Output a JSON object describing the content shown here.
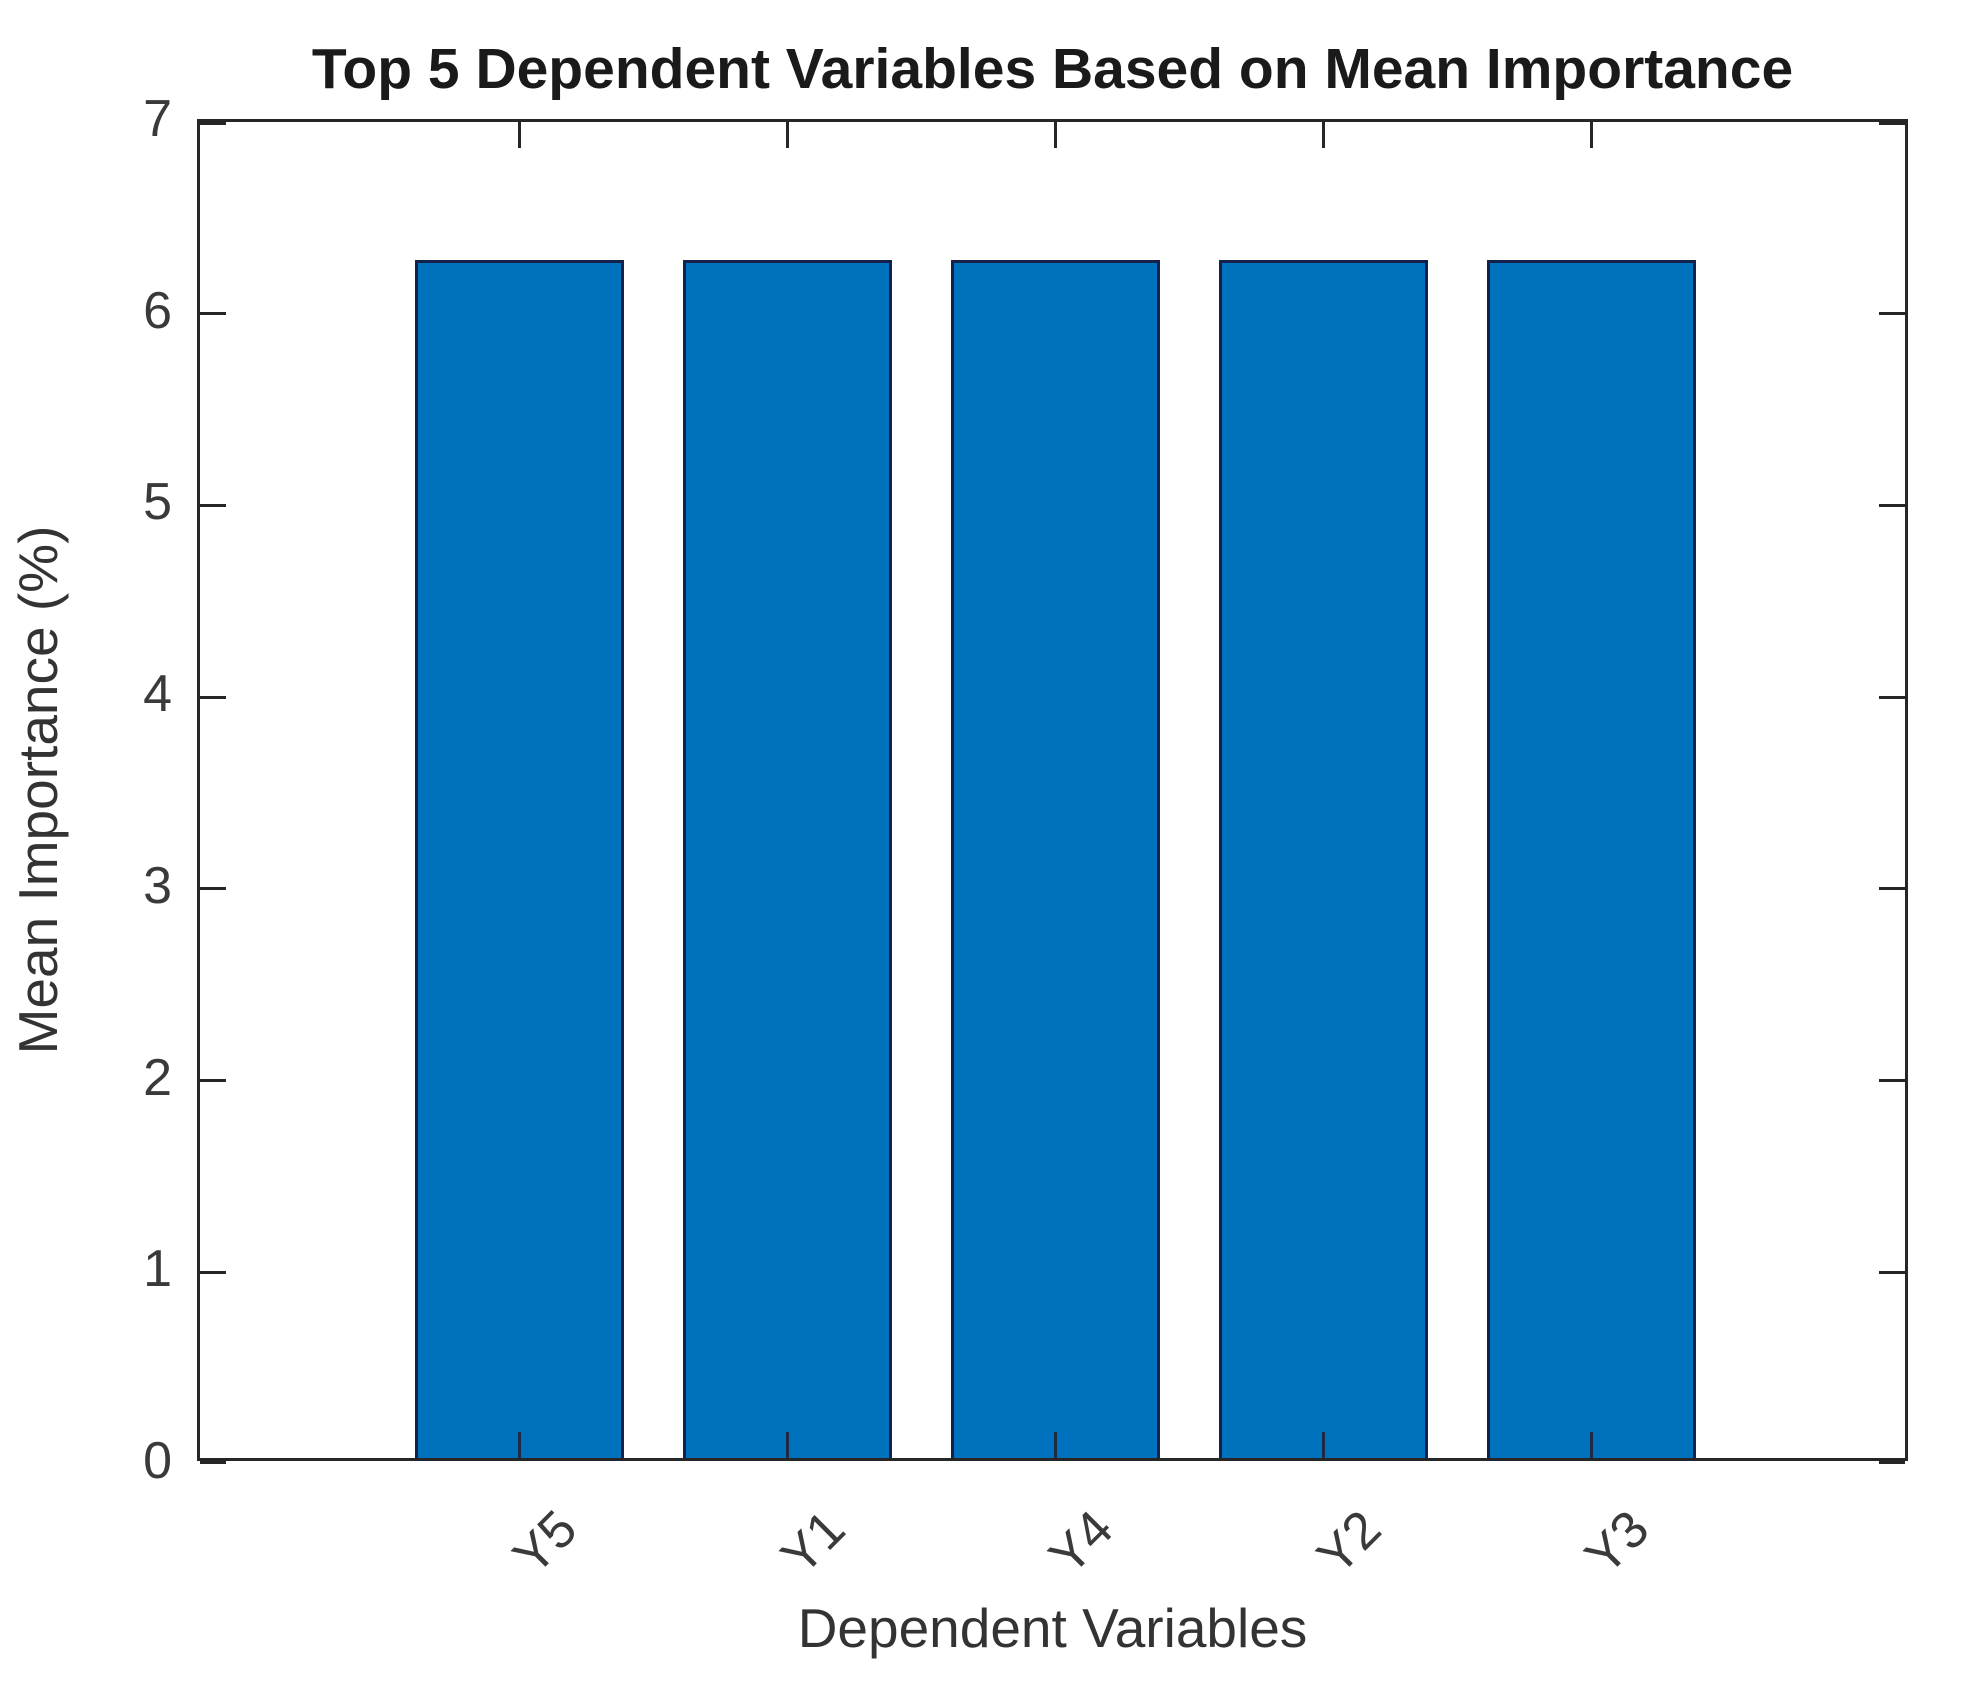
{
  "chart_data": {
    "type": "bar",
    "title": "Top 5 Dependent Variables Based on Mean Importance",
    "xlabel": "Dependent Variables",
    "ylabel": "Mean Importance (%)",
    "categories": [
      "Y5",
      "Y1",
      "Y4",
      "Y2",
      "Y3"
    ],
    "values": [
      6.25,
      6.25,
      6.25,
      6.25,
      6.25
    ],
    "ylim": [
      0,
      7
    ],
    "yticks": [
      0,
      1,
      2,
      3,
      4,
      5,
      6,
      7
    ],
    "xtick_rotation_deg": 45,
    "grid": false,
    "legend": null,
    "bar_fill_color": "#0072BD",
    "bar_edge_color": "#14224a",
    "axis_color": "#262626",
    "tick_label_color": "#3a3a3a",
    "title_color": "#1a1a1a",
    "background_color": "#ffffff"
  }
}
